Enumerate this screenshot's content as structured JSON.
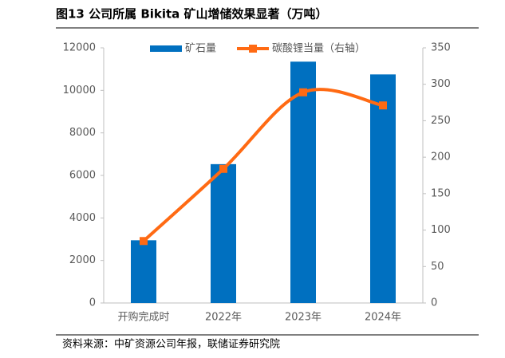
{
  "chart_data": {
    "type": "combo",
    "title": "图13 公司所属 Bikita 矿山增储效果显著（万吨）",
    "source": "资料来源：中矿资源公司年报，联储证券研究院",
    "categories": [
      "开购完成时",
      "2022年",
      "2023年",
      "2024年"
    ],
    "series": [
      {
        "name": "矿石量",
        "type": "bar",
        "color": "#0070c0",
        "values": [
          2950,
          6530,
          11350,
          10750
        ]
      },
      {
        "name": "碳酸锂当量（右轴）",
        "type": "line",
        "axis": "y2",
        "color": "#ff6a13",
        "values": [
          85,
          184,
          289,
          271
        ]
      }
    ],
    "ylim": [
      0,
      12000
    ],
    "yticks": [
      0,
      2000,
      4000,
      6000,
      8000,
      10000,
      12000
    ],
    "y2lim": [
      0,
      350
    ],
    "y2ticks": [
      0,
      50,
      100,
      150,
      200,
      250,
      300,
      350
    ],
    "legend": "top"
  }
}
